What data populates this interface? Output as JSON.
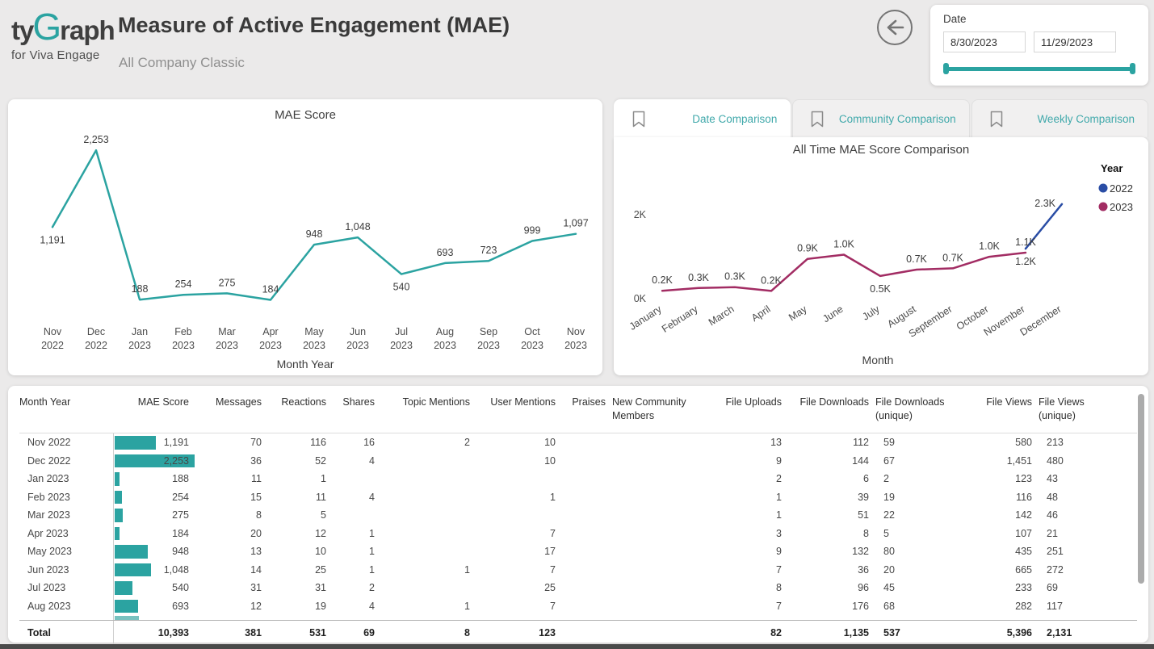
{
  "header": {
    "logo": {
      "ty": "ty",
      "g": "G",
      "raph": "raph",
      "tagline": "for Viva Engage"
    },
    "title": "Measure of Active Engagement (MAE)",
    "subtitle": "All Company Classic"
  },
  "icons": {
    "back": "arrow-left-circle",
    "tab_bookmark": "bookmark"
  },
  "date_filter": {
    "label": "Date",
    "start": "8/30/2023",
    "end": "11/29/2023"
  },
  "tabs": [
    {
      "label": "Date Comparison",
      "active": true
    },
    {
      "label": "Community Comparison",
      "active": false
    },
    {
      "label": "Weekly Comparison",
      "active": false
    }
  ],
  "colors": {
    "accent_teal": "#2ba3a1",
    "tab_text": "#41a9ab",
    "series_2022_blue": "#2a4da5",
    "series_2023_magenta": "#a22c63"
  },
  "chart_data": [
    {
      "type": "line",
      "title": "MAE Score",
      "xlabel": "Month Year",
      "ylabel": "",
      "ylim": [
        0,
        2400
      ],
      "grid": false,
      "line_color": "#2ba3a1",
      "categories": [
        "Nov 2022",
        "Dec 2022",
        "Jan 2023",
        "Feb 2023",
        "Mar 2023",
        "Apr 2023",
        "May 2023",
        "Jun 2023",
        "Jul 2023",
        "Aug 2023",
        "Sep 2023",
        "Oct 2023",
        "Nov 2023"
      ],
      "values": [
        1191,
        2253,
        188,
        254,
        275,
        184,
        948,
        1048,
        540,
        693,
        723,
        999,
        1097
      ],
      "data_labels": [
        "1,191",
        "2,253",
        "188",
        "254",
        "275",
        "184",
        "948",
        "1,048",
        "540",
        "693",
        "723",
        "999",
        "1,097"
      ],
      "label_position": [
        "below",
        "above",
        "above",
        "above",
        "above",
        "above",
        "above",
        "above",
        "below",
        "above",
        "above",
        "above",
        "above"
      ]
    },
    {
      "type": "line",
      "title": "All Time MAE Score Comparison",
      "xlabel": "Month",
      "ylabel": "",
      "ylim": [
        0,
        2400
      ],
      "grid": false,
      "yticks": [
        {
          "label": "0K",
          "value": 0
        },
        {
          "label": "2K",
          "value": 2000
        }
      ],
      "legend_title": "Year",
      "legend_position": "top-right",
      "categories": [
        "January",
        "February",
        "March",
        "April",
        "May",
        "June",
        "July",
        "August",
        "September",
        "October",
        "November",
        "December"
      ],
      "series": [
        {
          "name": "2022",
          "color": "#2a4da5",
          "start_index": 10,
          "values": [
            1191,
            2253
          ],
          "data_labels": [
            "1.2K",
            "2.3K"
          ],
          "label_position": [
            "below",
            "left"
          ]
        },
        {
          "name": "2023",
          "color": "#a22c63",
          "start_index": 0,
          "values": [
            188,
            254,
            275,
            184,
            948,
            1048,
            540,
            693,
            723,
            999,
            1097
          ],
          "data_labels": [
            "0.2K",
            "0.3K",
            "0.3K",
            "0.2K",
            "0.9K",
            "1.0K",
            "0.5K",
            "0.7K",
            "0.7K",
            "1.0K",
            "1.1K"
          ],
          "label_position": [
            "above",
            "above",
            "above",
            "above",
            "above",
            "above",
            "below",
            "above",
            "above",
            "above",
            "above"
          ]
        }
      ]
    }
  ],
  "table": {
    "max_bar_value": 2253,
    "columns": [
      {
        "label": "Month Year",
        "align": "left"
      },
      {
        "label": "MAE Score",
        "align": "right"
      },
      {
        "label": "Messages",
        "align": "right"
      },
      {
        "label": "Reactions",
        "align": "right"
      },
      {
        "label": "Shares",
        "align": "right"
      },
      {
        "label": "Topic Mentions",
        "align": "right"
      },
      {
        "label": "User Mentions",
        "align": "right"
      },
      {
        "label": "Praises",
        "align": "right"
      },
      {
        "label": "New Community Members",
        "align": "left"
      },
      {
        "label": "File Uploads",
        "align": "right"
      },
      {
        "label": "File Downloads",
        "align": "right"
      },
      {
        "label": "File Downloads (unique)",
        "align": "left"
      },
      {
        "label": "File Views",
        "align": "right"
      },
      {
        "label": "File Views (unique)",
        "align": "left"
      }
    ],
    "rows": [
      {
        "bar": 1191,
        "cells": [
          "Nov 2022",
          "1,191",
          "70",
          "116",
          "16",
          "2",
          "10",
          "",
          "",
          "13",
          "112",
          "59",
          "580",
          "213"
        ]
      },
      {
        "bar": 2253,
        "cells": [
          "Dec 2022",
          "2,253",
          "36",
          "52",
          "4",
          "",
          "10",
          "",
          "",
          "9",
          "144",
          "67",
          "1,451",
          "480"
        ]
      },
      {
        "bar": 188,
        "cells": [
          "Jan 2023",
          "188",
          "11",
          "1",
          "",
          "",
          "",
          "",
          "",
          "2",
          "6",
          "2",
          "123",
          "43"
        ]
      },
      {
        "bar": 254,
        "cells": [
          "Feb 2023",
          "254",
          "15",
          "11",
          "4",
          "",
          "1",
          "",
          "",
          "1",
          "39",
          "19",
          "116",
          "48"
        ]
      },
      {
        "bar": 275,
        "cells": [
          "Mar 2023",
          "275",
          "8",
          "5",
          "",
          "",
          "",
          "",
          "",
          "1",
          "51",
          "22",
          "142",
          "46"
        ]
      },
      {
        "bar": 184,
        "cells": [
          "Apr 2023",
          "184",
          "20",
          "12",
          "1",
          "",
          "7",
          "",
          "",
          "3",
          "8",
          "5",
          "107",
          "21"
        ]
      },
      {
        "bar": 948,
        "cells": [
          "May 2023",
          "948",
          "13",
          "10",
          "1",
          "",
          "17",
          "",
          "",
          "9",
          "132",
          "80",
          "435",
          "251"
        ]
      },
      {
        "bar": 1048,
        "cells": [
          "Jun 2023",
          "1,048",
          "14",
          "25",
          "1",
          "1",
          "7",
          "",
          "",
          "7",
          "36",
          "20",
          "665",
          "272"
        ]
      },
      {
        "bar": 540,
        "cells": [
          "Jul 2023",
          "540",
          "31",
          "31",
          "2",
          "",
          "25",
          "",
          "",
          "8",
          "96",
          "45",
          "233",
          "69"
        ]
      },
      {
        "bar": 693,
        "cells": [
          "Aug 2023",
          "693",
          "12",
          "19",
          "4",
          "1",
          "7",
          "",
          "",
          "7",
          "176",
          "68",
          "282",
          "117"
        ]
      }
    ],
    "partial_next_row_bar": 723,
    "total_row": [
      "Total",
      "10,393",
      "381",
      "531",
      "69",
      "8",
      "123",
      "",
      "",
      "82",
      "1,135",
      "537",
      "5,396",
      "2,131"
    ]
  }
}
